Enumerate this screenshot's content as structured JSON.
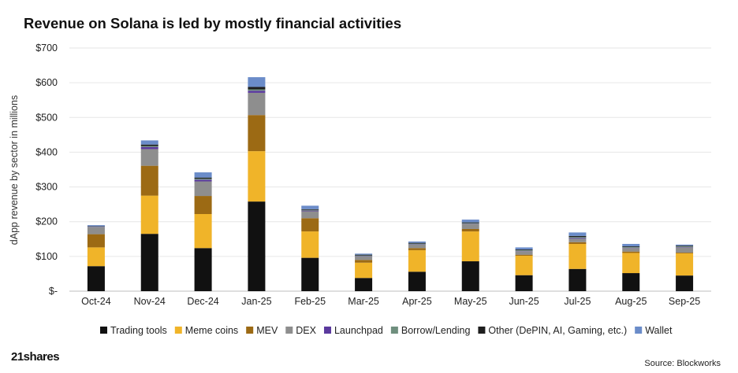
{
  "chart_data": {
    "type": "bar",
    "stacked": true,
    "title": "Revenue on Solana is led by mostly financial activities",
    "ylabel": "dApp revenue by sector in millions",
    "xlabel": "",
    "ylim": [
      0,
      700
    ],
    "yticks": [
      0,
      100,
      200,
      300,
      400,
      500,
      600,
      700
    ],
    "ytick_labels": [
      "$-",
      "$100",
      "$200",
      "$300",
      "$400",
      "$500",
      "$600",
      "$700"
    ],
    "grid": "horizontal",
    "legend_position": "bottom",
    "categories": [
      "Oct-24",
      "Nov-24",
      "Dec-24",
      "Jan-25",
      "Feb-25",
      "Mar-25",
      "Apr-25",
      "May-25",
      "Jun-25",
      "Jul-25",
      "Aug-25",
      "Sep-25"
    ],
    "series": [
      {
        "name": "Trading tools",
        "color": "#111111",
        "values": [
          72,
          165,
          124,
          258,
          96,
          38,
          56,
          86,
          46,
          64,
          52,
          45
        ]
      },
      {
        "name": "Meme coins",
        "color": "#F0B429",
        "values": [
          54,
          110,
          98,
          145,
          76,
          44,
          62,
          86,
          56,
          72,
          58,
          64
        ]
      },
      {
        "name": "MEV",
        "color": "#9C6A14",
        "values": [
          38,
          86,
          52,
          104,
          38,
          8,
          6,
          7,
          3,
          5,
          4,
          2
        ]
      },
      {
        "name": "DEX",
        "color": "#8E8E8E",
        "values": [
          20,
          48,
          42,
          64,
          20,
          10,
          10,
          14,
          10,
          10,
          10,
          15
        ]
      },
      {
        "name": "Launchpad",
        "color": "#5B3A9E",
        "values": [
          1,
          6,
          5,
          6,
          2,
          1,
          1,
          1,
          1,
          2,
          1,
          1
        ]
      },
      {
        "name": "Borrow/Lending",
        "color": "#6F8F7E",
        "values": [
          1,
          3,
          3,
          4,
          2,
          2,
          2,
          2,
          2,
          3,
          2,
          2
        ]
      },
      {
        "name": "Other (DePIN, AI, Gaming, etc.)",
        "color": "#1E1E1E",
        "values": [
          1,
          4,
          3,
          7,
          2,
          2,
          2,
          2,
          2,
          3,
          2,
          2
        ]
      },
      {
        "name": "Wallet",
        "color": "#6B8CC9",
        "values": [
          3,
          12,
          15,
          28,
          10,
          3,
          4,
          8,
          6,
          10,
          7,
          3
        ]
      }
    ]
  },
  "footer": {
    "source": "Source: Blockworks",
    "brand": "21shares"
  }
}
